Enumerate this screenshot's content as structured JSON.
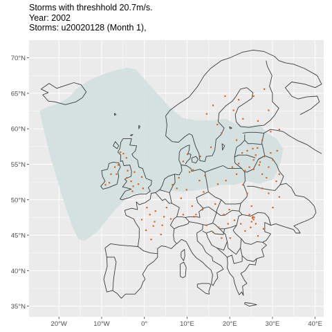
{
  "title": {
    "line1": "Storms with threshhold 20.7m/s.",
    "line2": "Year: 2002",
    "line3": "Storms: u20020128 (Month 1),"
  },
  "map": {
    "x_axis": {
      "range": [
        -27,
        42
      ],
      "ticks": [
        -20,
        -10,
        0,
        10,
        20,
        30,
        40
      ],
      "labels": [
        "20°W",
        "10°W",
        "0°",
        "10°E",
        "20°E",
        "30°E",
        "40°E"
      ]
    },
    "y_axis": {
      "range": [
        33.5,
        72.5
      ],
      "ticks": [
        35,
        40,
        45,
        50,
        55,
        60,
        65,
        70
      ],
      "labels": [
        "35°N",
        "40°N",
        "45°N",
        "50°N",
        "55°N",
        "60°N",
        "65°N",
        "70°N"
      ]
    },
    "panel_color": "#ebebeb",
    "grid_color": "#ffffff",
    "border_color": "#3a3a3a",
    "storm_area_color": "#d2e0e0",
    "storm_point_color": "#e06010",
    "storm_points": [
      [
        -5.6,
        56.7
      ],
      [
        -4.9,
        56.5
      ],
      [
        -4.2,
        55.9
      ],
      [
        -6.9,
        54.6
      ],
      [
        -6.5,
        53.6
      ],
      [
        -6.1,
        54.9
      ],
      [
        -3.9,
        54.1
      ],
      [
        -2.3,
        53.9
      ],
      [
        -3.1,
        52.6
      ],
      [
        -2.6,
        51.9
      ],
      [
        -0.6,
        53.2
      ],
      [
        -7.8,
        53.6
      ],
      [
        -8.2,
        52.4
      ],
      [
        -0.3,
        51.6
      ],
      [
        -2.8,
        51.2
      ],
      [
        -1.4,
        52.2
      ],
      [
        -4.1,
        53.1
      ],
      [
        -9.1,
        52.1
      ],
      [
        0.6,
        48.9
      ],
      [
        1.3,
        47.9
      ],
      [
        2.6,
        48.4
      ],
      [
        4.6,
        47.6
      ],
      [
        2.1,
        46.3
      ],
      [
        0.4,
        45.7
      ],
      [
        3.9,
        45.1
      ],
      [
        1.6,
        44.4
      ],
      [
        2.4,
        46.9
      ],
      [
        4.2,
        46.4
      ],
      [
        -0.6,
        47.2
      ],
      [
        5.2,
        48.9
      ],
      [
        6.2,
        47.3
      ],
      [
        8.6,
        50.2
      ],
      [
        9.1,
        47.9
      ],
      [
        11.2,
        49.1
      ],
      [
        11.6,
        47.6
      ],
      [
        12.1,
        47.9
      ],
      [
        13.6,
        48.6
      ],
      [
        12.9,
        52.7
      ],
      [
        14.2,
        53.4
      ],
      [
        17.2,
        52.2
      ],
      [
        19.1,
        52.7
      ],
      [
        21.6,
        53.6
      ],
      [
        20.6,
        54.6
      ],
      [
        22.1,
        55.1
      ],
      [
        23.6,
        54.1
      ],
      [
        24.6,
        54.6
      ],
      [
        25.6,
        54.3
      ],
      [
        22.9,
        56.6
      ],
      [
        24.1,
        56.9
      ],
      [
        25.4,
        57.2
      ],
      [
        26.5,
        57.3
      ],
      [
        26.1,
        56.3
      ],
      [
        25.6,
        55.6
      ],
      [
        27.1,
        55.3
      ],
      [
        28.1,
        56.1
      ],
      [
        26.9,
        54.9
      ],
      [
        29.1,
        54.6
      ],
      [
        30.1,
        55.6
      ],
      [
        29.6,
        56.6
      ],
      [
        31.1,
        56.9
      ],
      [
        27.6,
        53.6
      ],
      [
        28.6,
        53.1
      ],
      [
        30.9,
        52.6
      ],
      [
        31.6,
        53.6
      ],
      [
        23.1,
        52.1
      ],
      [
        24.1,
        50.9
      ],
      [
        25.1,
        49.1
      ],
      [
        24.6,
        47.9
      ],
      [
        25.4,
        47.6
      ],
      [
        25.6,
        47.2
      ],
      [
        25.1,
        46.9
      ],
      [
        26.1,
        46.6
      ],
      [
        24.9,
        46.1
      ],
      [
        25.3,
        47.4
      ],
      [
        25.7,
        47.5
      ],
      [
        22.6,
        46.6
      ],
      [
        23.6,
        45.6
      ],
      [
        21.1,
        47.1
      ],
      [
        19.6,
        46.6
      ],
      [
        18.6,
        47.9
      ],
      [
        19.9,
        48.6
      ],
      [
        16.6,
        49.4
      ],
      [
        17.4,
        46.1
      ],
      [
        14.6,
        46.4
      ],
      [
        16.1,
        45.4
      ],
      [
        18.1,
        44.6
      ],
      [
        20.1,
        44.6
      ],
      [
        26.6,
        44.9
      ],
      [
        27.9,
        45.9
      ],
      [
        30.1,
        48.9
      ],
      [
        31.6,
        50.4
      ],
      [
        29.1,
        50.9
      ],
      [
        27.6,
        51.6
      ],
      [
        20.9,
        62.6
      ],
      [
        23.1,
        61.4
      ],
      [
        26.6,
        61.1
      ],
      [
        29.1,
        62.6
      ],
      [
        16.1,
        63.3
      ],
      [
        14.6,
        62.1
      ],
      [
        17.1,
        60.6
      ],
      [
        18.1,
        59.4
      ],
      [
        15.6,
        57.4
      ],
      [
        13.1,
        56.1
      ],
      [
        10.1,
        56.4
      ],
      [
        9.1,
        55.4
      ],
      [
        11.4,
        54.2
      ],
      [
        25.6,
        64.6
      ],
      [
        28.1,
        65.6
      ],
      [
        22.1,
        64.1
      ],
      [
        18.9,
        64.6
      ],
      [
        29.6,
        59.6
      ],
      [
        31.6,
        59.9
      ],
      [
        27.6,
        58.4
      ],
      [
        21.6,
        58.4
      ],
      [
        8.1,
        53.1
      ],
      [
        6.6,
        52.1
      ],
      [
        9.9,
        51.4
      ],
      [
        13.9,
        51.1
      ],
      [
        7.6,
        51.6
      ],
      [
        10.6,
        53.9
      ]
    ]
  }
}
